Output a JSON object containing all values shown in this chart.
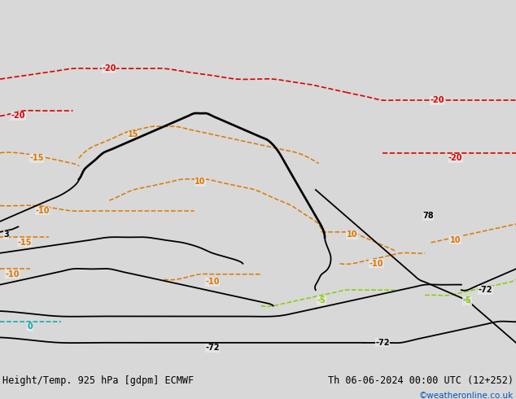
{
  "title_left": "Height/Temp. 925 hPa [gdpm] ECMWF",
  "title_right": "Th 06-06-2024 00:00 UTC (12+252)",
  "credit": "©weatheronline.co.uk",
  "bg_color": "#d8d8d8",
  "land_color": "#c8c8c8",
  "australia_fill": "#c8edb0",
  "sea_color": "#e8e8e8",
  "fig_width": 6.34,
  "fig_height": 4.9,
  "dpi": 100,
  "bottom_bar_color": "#e2e2e2",
  "title_fontsize": 8.5,
  "credit_color": "#0055bb",
  "contour_black_color": "#000000",
  "contour_orange_color": "#dd7700",
  "contour_red_color": "#dd0000",
  "contour_green_color": "#88cc00",
  "contour_cyan_color": "#00aaaa",
  "map_extent": [
    100,
    185,
    -62,
    8
  ],
  "lw_black": 1.3,
  "lw_orange": 1.1,
  "lw_red": 1.2,
  "lw_green": 1.1,
  "lw_cyan": 1.1
}
